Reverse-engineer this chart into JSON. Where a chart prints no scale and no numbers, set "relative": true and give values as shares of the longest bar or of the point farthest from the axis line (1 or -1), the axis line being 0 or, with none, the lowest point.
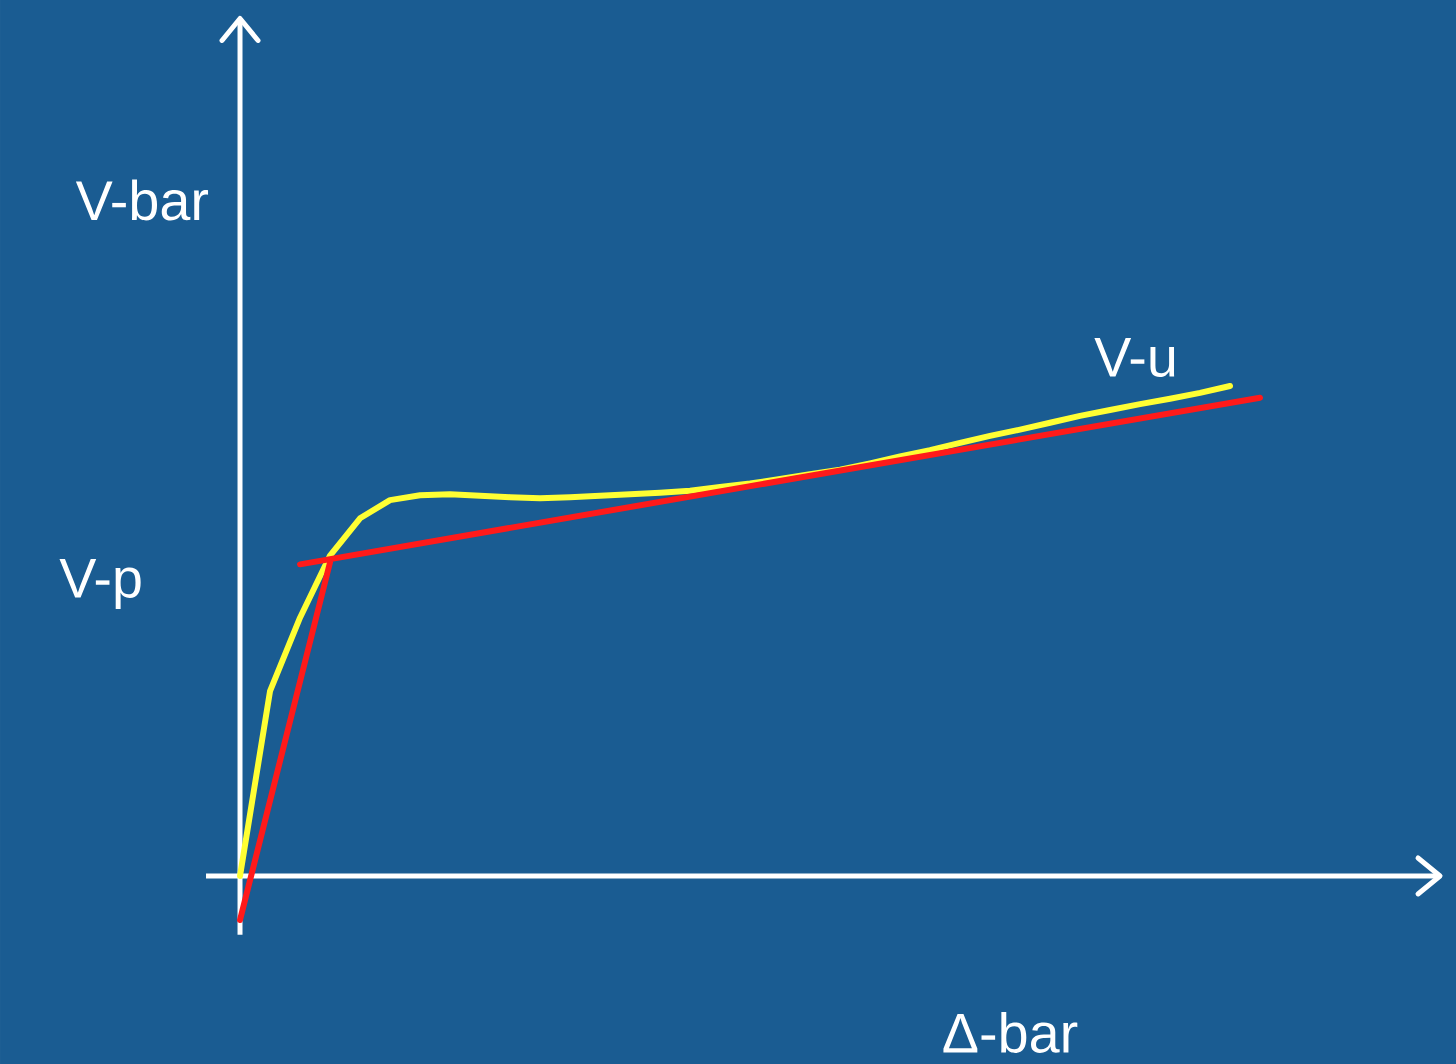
{
  "chart_data": {
    "type": "line",
    "relative": true,
    "xlabel": "Δ-bar",
    "ylabel": "V-bar",
    "annotations": [
      "V-p",
      "V-u"
    ],
    "marker": "none",
    "line_style": "solid",
    "categories": [
      null,
      null,
      null,
      null,
      null,
      null,
      null,
      null,
      null,
      null,
      null,
      null,
      null,
      null,
      null,
      null,
      null,
      null,
      null,
      null,
      null,
      null,
      null,
      null,
      null,
      null,
      null,
      null,
      null,
      null,
      null,
      null,
      null,
      null,
      null
    ],
    "series": [
      {
        "color": "#ffff33",
        "values": [
          0,
          0.377,
          0.527,
          0.654,
          0.73,
          0.767,
          0.777,
          0.779,
          0.776,
          0.773,
          0.771,
          0.773,
          0.776,
          0.779,
          0.782,
          0.786,
          0.794,
          0.801,
          0.81,
          0.82,
          0.829,
          0.842,
          0.856,
          0.869,
          0.884,
          0.898,
          0.911,
          0.925,
          0.939,
          0.951,
          0.963,
          0.974,
          0.986,
          1.0,
          null
        ]
      },
      {
        "color": "#ff1a1a",
        "values": [
          -0.09,
          null,
          null,
          0.64,
          null,
          null,
          null,
          null,
          null,
          null,
          null,
          null,
          null,
          null,
          null,
          null,
          null,
          null,
          null,
          null,
          null,
          null,
          null,
          null,
          null,
          null,
          null,
          null,
          null,
          null,
          null,
          null,
          null,
          null,
          null
        ]
      },
      {
        "color": "#ff1a1a",
        "values": [
          null,
          null,
          0.636,
          null,
          null,
          null,
          null,
          null,
          null,
          null,
          null,
          null,
          null,
          null,
          null,
          null,
          null,
          null,
          null,
          null,
          null,
          null,
          null,
          null,
          null,
          null,
          null,
          null,
          null,
          null,
          null,
          null,
          null,
          null,
          0.976
        ]
      }
    ]
  }
}
